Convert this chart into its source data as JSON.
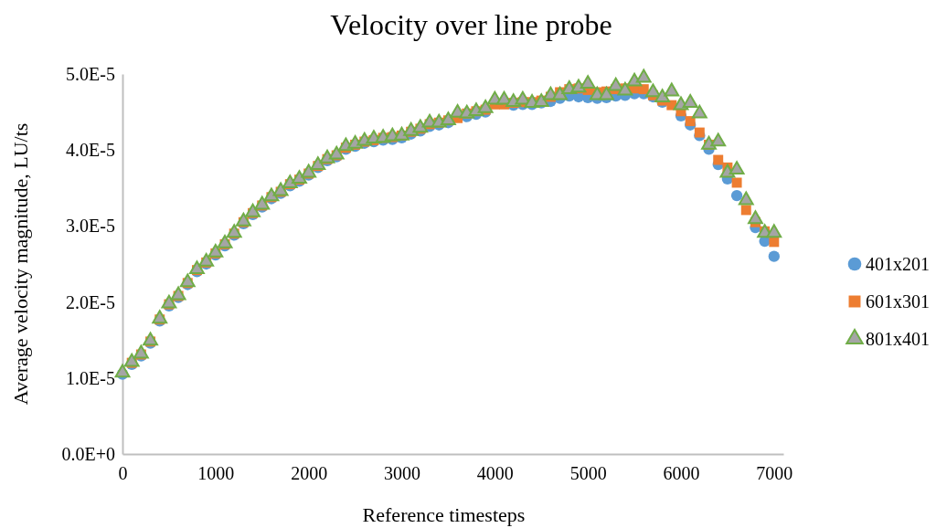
{
  "chart_data": {
    "type": "scatter",
    "title": "Velocity over line probe",
    "xlabel": "Reference timesteps",
    "ylabel": "Average velocity magnitude, LU/ts",
    "x": [
      0,
      100,
      200,
      300,
      400,
      500,
      600,
      700,
      800,
      900,
      1000,
      1100,
      1200,
      1300,
      1400,
      1500,
      1600,
      1700,
      1800,
      1900,
      2000,
      2100,
      2200,
      2300,
      2400,
      2500,
      2600,
      2700,
      2800,
      2900,
      3000,
      3100,
      3200,
      3300,
      3400,
      3500,
      3600,
      3700,
      3800,
      3900,
      4000,
      4100,
      4200,
      4300,
      4400,
      4500,
      4600,
      4700,
      4800,
      4900,
      5000,
      5100,
      5200,
      5300,
      5400,
      5500,
      5600,
      5700,
      5800,
      5900,
      6000,
      6100,
      6200,
      6300,
      6400,
      6500,
      6600,
      6700,
      6800,
      6900,
      7000
    ],
    "xlim": [
      0,
      7100
    ],
    "xticks": [
      0,
      1000,
      2000,
      3000,
      4000,
      5000,
      6000,
      7000
    ],
    "ylim": [
      0,
      5e-05
    ],
    "yticks": [
      {
        "value": 0,
        "label": "0.0E+0"
      },
      {
        "value": 1e-05,
        "label": "1.0E-5"
      },
      {
        "value": 2e-05,
        "label": "2.0E-5"
      },
      {
        "value": 3e-05,
        "label": "3.0E-5"
      },
      {
        "value": 4e-05,
        "label": "4.0E-5"
      },
      {
        "value": 5e-05,
        "label": "5.0E-5"
      }
    ],
    "grid": false,
    "legend": "right",
    "series": [
      {
        "name": "401x201",
        "color": "#5b9bd5",
        "marker": "circle",
        "values": [
          1.05e-05,
          1.18e-05,
          1.29e-05,
          1.46e-05,
          1.75e-05,
          1.95e-05,
          2.06e-05,
          2.23e-05,
          2.4e-05,
          2.5e-05,
          2.62e-05,
          2.74e-05,
          2.88e-05,
          3.03e-05,
          3.15e-05,
          3.25e-05,
          3.36e-05,
          3.43e-05,
          3.53e-05,
          3.59e-05,
          3.67e-05,
          3.77e-05,
          3.86e-05,
          3.91e-05,
          4.01e-05,
          4.05e-05,
          4.09e-05,
          4.11e-05,
          4.13e-05,
          4.14e-05,
          4.16e-05,
          4.21e-05,
          4.25e-05,
          4.31e-05,
          4.33e-05,
          4.36e-05,
          null,
          4.44e-05,
          4.47e-05,
          4.5e-05,
          null,
          null,
          4.59e-05,
          4.6e-05,
          4.6e-05,
          4.62e-05,
          4.64e-05,
          4.68e-05,
          4.71e-05,
          4.7e-05,
          4.69e-05,
          4.68e-05,
          4.69e-05,
          4.71e-05,
          4.72e-05,
          4.74e-05,
          4.74e-05,
          4.7e-05,
          4.63e-05,
          null,
          4.45e-05,
          4.33e-05,
          4.19e-05,
          4.01e-05,
          3.81e-05,
          3.62e-05,
          3.4e-05,
          null,
          2.98e-05,
          2.8e-05,
          2.6e-05
        ]
      },
      {
        "name": "601x301",
        "color": "#ed7d31",
        "marker": "square",
        "values": [
          null,
          1.2e-05,
          1.31e-05,
          1.48e-05,
          1.77e-05,
          1.97e-05,
          2.08e-05,
          2.25e-05,
          2.42e-05,
          2.52e-05,
          2.64e-05,
          2.76e-05,
          2.9e-05,
          3.05e-05,
          3.17e-05,
          3.27e-05,
          3.38e-05,
          3.45e-05,
          3.55e-05,
          3.61e-05,
          3.69e-05,
          3.79e-05,
          3.88e-05,
          3.93e-05,
          4.03e-05,
          4.07e-05,
          4.11e-05,
          4.13e-05,
          4.16e-05,
          4.17e-05,
          4.19e-05,
          4.24e-05,
          4.28e-05,
          4.34e-05,
          4.36e-05,
          4.39e-05,
          4.42e-05,
          4.48e-05,
          4.51e-05,
          4.53e-05,
          4.6e-05,
          4.6e-05,
          4.62e-05,
          4.63e-05,
          4.63e-05,
          4.65e-05,
          4.7e-05,
          4.76e-05,
          4.8e-05,
          4.81e-05,
          4.79e-05,
          4.76e-05,
          4.77e-05,
          4.8e-05,
          4.81e-05,
          4.81e-05,
          4.8e-05,
          4.72e-05,
          4.65e-05,
          4.59e-05,
          4.51e-05,
          4.38e-05,
          4.23e-05,
          4.07e-05,
          3.87e-05,
          3.77e-05,
          3.57e-05,
          3.21e-05,
          3.05e-05,
          2.93e-05,
          2.79e-05
        ]
      },
      {
        "name": "801x401",
        "color": "#70ad47",
        "marker": "triangle",
        "values": [
          1.07e-05,
          1.21e-05,
          1.32e-05,
          1.49e-05,
          1.78e-05,
          1.98e-05,
          2.09e-05,
          2.26e-05,
          2.43e-05,
          2.53e-05,
          2.65e-05,
          2.77e-05,
          2.91e-05,
          3.06e-05,
          3.18e-05,
          3.28e-05,
          3.39e-05,
          3.46e-05,
          3.56e-05,
          3.62e-05,
          3.7e-05,
          3.8e-05,
          3.89e-05,
          3.94e-05,
          4.05e-05,
          4.08e-05,
          4.12e-05,
          4.15e-05,
          4.16e-05,
          4.18e-05,
          4.19e-05,
          4.25e-05,
          4.29e-05,
          4.36e-05,
          4.36e-05,
          4.39e-05,
          4.49e-05,
          4.48e-05,
          4.51e-05,
          4.55e-05,
          4.66e-05,
          4.66e-05,
          4.63e-05,
          4.66e-05,
          4.62e-05,
          4.63e-05,
          4.72e-05,
          4.72e-05,
          4.8e-05,
          4.82e-05,
          4.87e-05,
          4.72e-05,
          4.72e-05,
          4.84e-05,
          4.78e-05,
          4.9e-05,
          4.95e-05,
          4.76e-05,
          4.69e-05,
          4.77e-05,
          4.59e-05,
          4.62e-05,
          4.48e-05,
          4.07e-05,
          4.11e-05,
          3.7e-05,
          3.74e-05,
          3.34e-05,
          3.09e-05,
          2.91e-05,
          2.91e-05
        ]
      }
    ]
  }
}
